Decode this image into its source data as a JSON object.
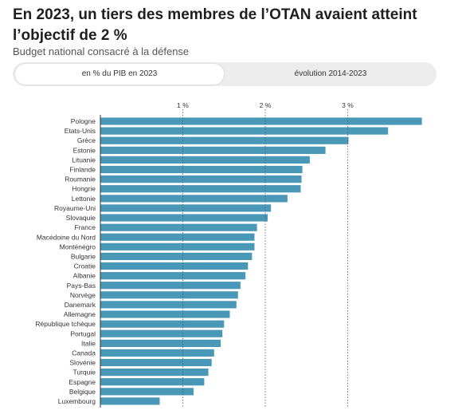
{
  "header": {
    "title": "En 2023, un tiers des membres de l’OTAN avaient atteint l’objectif de 2 %",
    "subtitle": "Budget national consacré à la défense"
  },
  "toggle": {
    "options": [
      {
        "label": "en % du PIB en 2023",
        "selected": true
      },
      {
        "label": "évolution 2014-2023",
        "selected": false
      }
    ]
  },
  "colors": {
    "bar": "#4a98b8",
    "grid": "#555555",
    "text": "#333333"
  },
  "chart_data": {
    "type": "bar",
    "orientation": "horizontal",
    "categories": [
      "Pologne",
      "Etats-Unis",
      "Grèce",
      "Estonie",
      "Lituanie",
      "Finlande",
      "Roumanie",
      "Hongrie",
      "Lettonie",
      "Royaume-Uni",
      "Slovaquie",
      "France",
      "Macédoine du Nord",
      "Monténégro",
      "Bulgarie",
      "Croatie",
      "Albanie",
      "Pays-Bas",
      "Norvège",
      "Danemark",
      "Allemagne",
      "République tchèque",
      "Portugal",
      "Italie",
      "Canada",
      "Slovénie",
      "Turquie",
      "Espagne",
      "Belgique",
      "Luxembourg"
    ],
    "values": [
      3.9,
      3.49,
      3.01,
      2.73,
      2.54,
      2.45,
      2.44,
      2.43,
      2.27,
      2.07,
      2.03,
      1.9,
      1.87,
      1.87,
      1.84,
      1.79,
      1.76,
      1.7,
      1.67,
      1.65,
      1.57,
      1.5,
      1.48,
      1.46,
      1.38,
      1.35,
      1.31,
      1.26,
      1.13,
      0.72
    ],
    "xticks": [
      "1 %",
      "2 %",
      "3 %"
    ],
    "xtick_values": [
      1,
      2,
      3
    ],
    "xlim": [
      0,
      3.9
    ],
    "grid": true
  }
}
